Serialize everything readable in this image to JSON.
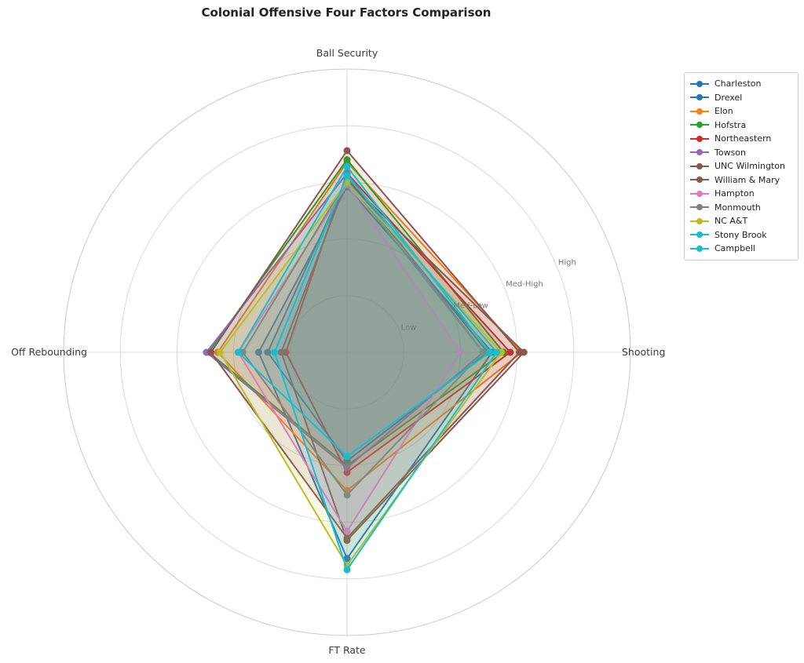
{
  "title": "Colonial Offensive Four Factors Comparison",
  "chart_data": {
    "type": "radar",
    "title": "Colonial Offensive Four Factors Comparison",
    "categories": [
      "Ball Security",
      "Shooting",
      "FT Rate",
      "Off Rebounding"
    ],
    "category_angles_deg": [
      90,
      0,
      -90,
      180
    ],
    "radial_ticks": {
      "labels": [
        "Low",
        "Med-Low",
        "Med-High",
        "High"
      ],
      "values": [
        0.25,
        0.5,
        0.75,
        1.0
      ],
      "angle_deg": 22.5
    },
    "rlim": [
      0,
      1.25
    ],
    "grid": true,
    "legend_position": "upper right",
    "style": {
      "grid_color": "#d9d9d9",
      "spine_color": "#c9c9c9",
      "tick_label_color": "#787878",
      "category_label_color": "#3b3b3b",
      "fill_opacity": 0.11,
      "line_width": 2,
      "marker_radius": 4.5
    },
    "series": [
      {
        "name": "Charleston",
        "color": "#1f77b4",
        "values": [
          0.73,
          0.64,
          0.91,
          0.39
        ]
      },
      {
        "name": "Drexel",
        "color": "#1f77b4",
        "values": [
          0.77,
          0.62,
          0.48,
          0.35
        ]
      },
      {
        "name": "Elon",
        "color": "#ff7f0e",
        "values": [
          0.84,
          0.77,
          0.61,
          0.57
        ]
      },
      {
        "name": "Hofstra",
        "color": "#2ca02c",
        "values": [
          0.85,
          0.69,
          0.5,
          0.61
        ]
      },
      {
        "name": "Northeastern",
        "color": "#d62728",
        "values": [
          0.79,
          0.72,
          0.53,
          0.27
        ]
      },
      {
        "name": "Towson",
        "color": "#9467bd",
        "values": [
          0.79,
          0.6,
          0.51,
          0.62
        ]
      },
      {
        "name": "UNC Wilmington",
        "color": "#8c564b",
        "values": [
          0.76,
          0.78,
          0.83,
          0.29
        ]
      },
      {
        "name": "William & Mary",
        "color": "#8c564b",
        "values": [
          0.89,
          0.76,
          0.82,
          0.6
        ]
      },
      {
        "name": "Hampton",
        "color": "#e377c2",
        "values": [
          0.74,
          0.5,
          0.79,
          0.48
        ]
      },
      {
        "name": "Monmouth",
        "color": "#7f7f7f",
        "values": [
          0.76,
          0.6,
          0.63,
          0.46
        ]
      },
      {
        "name": "NC A&T",
        "color": "#bcbd22",
        "values": [
          0.75,
          0.68,
          0.94,
          0.56
        ]
      },
      {
        "name": "Stony Brook",
        "color": "#17becf",
        "values": [
          0.82,
          0.63,
          0.46,
          0.48
        ]
      },
      {
        "name": "Campbell",
        "color": "#17becf",
        "values": [
          0.78,
          0.66,
          0.96,
          0.32
        ]
      }
    ]
  }
}
